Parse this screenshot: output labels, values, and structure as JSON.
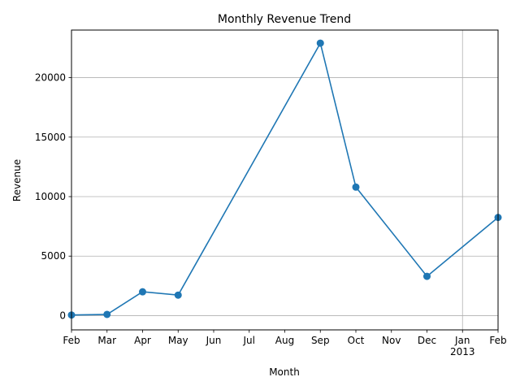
{
  "chart_data": {
    "type": "line",
    "title": "Monthly Revenue Trend",
    "xlabel": "Month",
    "ylabel": "Revenue",
    "x_ticks": [
      "Feb",
      "Mar",
      "Apr",
      "May",
      "Jun",
      "Jul",
      "Aug",
      "Sep",
      "Oct",
      "Nov",
      "Dec",
      "Jan",
      "Feb"
    ],
    "x_tick_sublabels": [
      "",
      "",
      "",
      "",
      "",
      "",
      "",
      "",
      "",
      "",
      "",
      "2013",
      ""
    ],
    "xlim": [
      "2012-02",
      "2013-02"
    ],
    "y_ticks": [
      0,
      5000,
      10000,
      15000,
      20000
    ],
    "ylim": [
      -1200,
      24000
    ],
    "grid": true,
    "series": [
      {
        "color": "#1f77b4",
        "x": [
          "2012-02",
          "2012-03",
          "2012-04",
          "2012-05",
          "2012-09",
          "2012-10",
          "2012-12",
          "2013-02"
        ],
        "y": [
          50,
          100,
          2000,
          1720,
          22900,
          10800,
          3300,
          8250
        ]
      }
    ]
  }
}
